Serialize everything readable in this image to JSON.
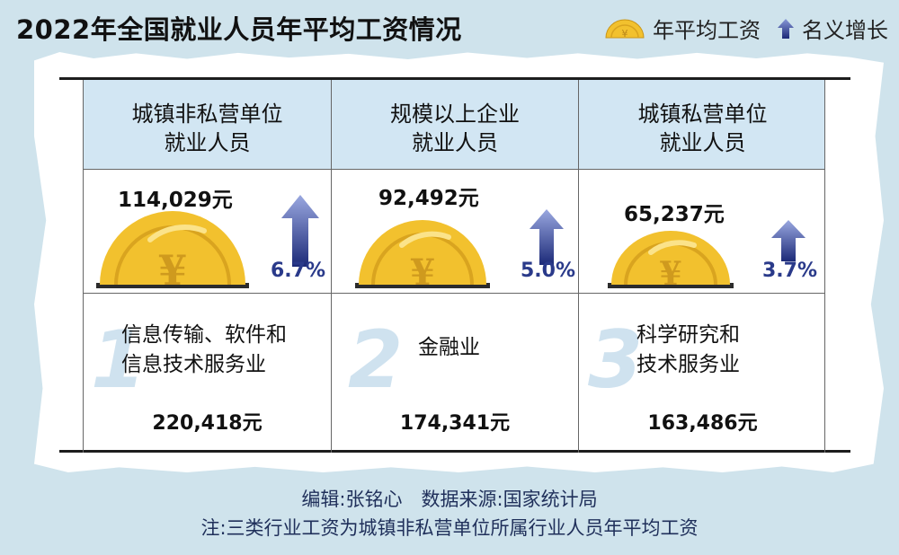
{
  "title": "2022年全国就业人员年平均工资情况",
  "legend": {
    "wage_label": "年平均工资",
    "growth_label": "名义增长",
    "wage_icon": "coin-icon",
    "growth_icon": "up-arrow-icon"
  },
  "colors": {
    "background": "#cfe3ec",
    "header_fill": "#d2e6f3",
    "coin": "#f2c12e",
    "arrow": "#2a3a8a",
    "footer_text": "#1f2f5a"
  },
  "categories": [
    {
      "name_line1": "城镇非私营单位",
      "name_line2": "就业人员",
      "wage": "114,029元",
      "wage_value": 114029,
      "growth": "6.7%",
      "growth_value": 6.7
    },
    {
      "name_line1": "规模以上企业",
      "name_line2": "就业人员",
      "wage": "92,492元",
      "wage_value": 92492,
      "growth": "5.0%",
      "growth_value": 5.0
    },
    {
      "name_line1": "城镇私营单位",
      "name_line2": "就业人员",
      "wage": "65,237元",
      "wage_value": 65237,
      "growth": "3.7%",
      "growth_value": 3.7
    }
  ],
  "industries": [
    {
      "rank": "1",
      "name_line1": "信息传输、软件和",
      "name_line2": "信息技术服务业",
      "wage": "220,418元"
    },
    {
      "rank": "2",
      "name_line1": "金融业",
      "name_line2": "",
      "wage": "174,341元"
    },
    {
      "rank": "3",
      "name_line1": "科学研究和",
      "name_line2": "技术服务业",
      "wage": "163,486元"
    }
  ],
  "footer": {
    "line1": "编辑:张铭心　数据来源:国家统计局",
    "line2": "注:三类行业工资为城镇非私营单位所属行业人员年平均工资"
  }
}
